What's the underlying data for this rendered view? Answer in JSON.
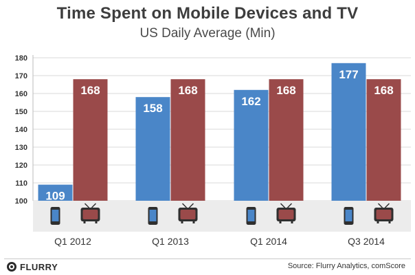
{
  "title": "Time Spent on Mobile Devices and TV",
  "subtitle": "US Daily Average (Min)",
  "source": "Source: Flurry Analytics, comScore",
  "logo_text": "FLURRY",
  "colors": {
    "mobile": "#4a86c8",
    "tv": "#9a4a4a",
    "grid": "#d9d9d9",
    "text": "#333333"
  },
  "icons": {
    "mobile": "smartphone-icon",
    "tv": "tv-icon"
  },
  "chart_data": {
    "type": "bar",
    "title": "Time Spent on Mobile Devices and TV",
    "subtitle": "US Daily Average (Min)",
    "categories": [
      "Q1 2012",
      "Q1 2013",
      "Q1 2014",
      "Q3 2014"
    ],
    "series": [
      {
        "icon": "smartphone-icon",
        "values": [
          109,
          158,
          162,
          177
        ]
      },
      {
        "icon": "tv-icon",
        "values": [
          168,
          168,
          168,
          168
        ]
      }
    ],
    "ylim": [
      100,
      180
    ],
    "yticks": [
      100,
      110,
      120,
      130,
      140,
      150,
      160,
      170,
      180
    ],
    "grid": true,
    "legend": "none",
    "data_labels": true
  }
}
